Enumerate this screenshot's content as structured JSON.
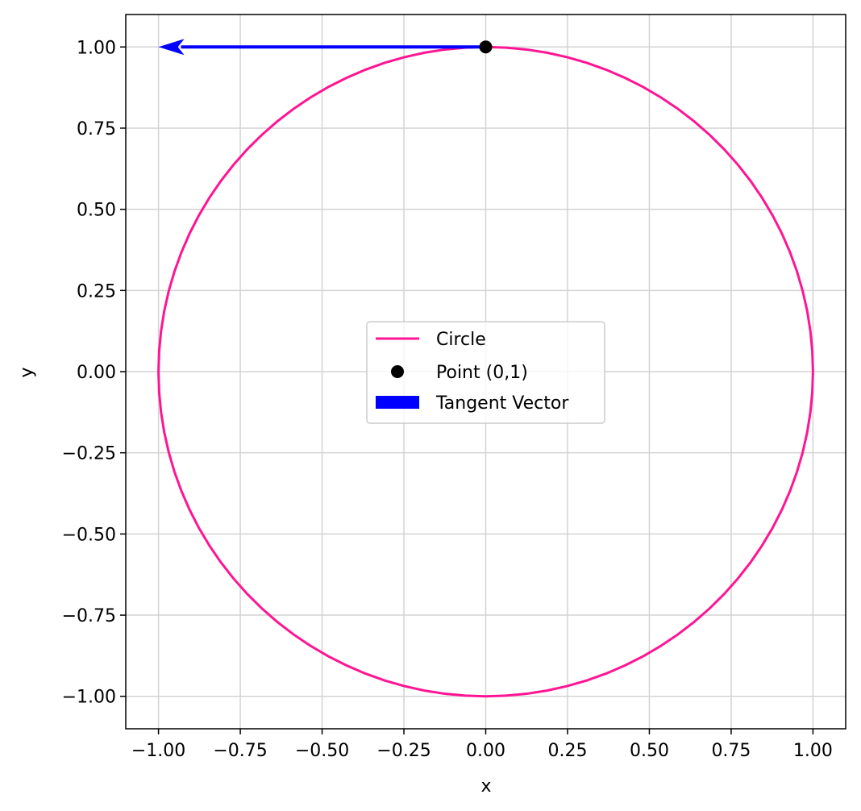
{
  "chart_data": {
    "type": "line",
    "title": "",
    "xlabel": "x",
    "ylabel": "y",
    "xlim": [
      -1.1,
      1.1
    ],
    "ylim": [
      -1.1,
      1.1
    ],
    "xticks": [
      -1.0,
      -0.75,
      -0.5,
      -0.25,
      0.0,
      0.25,
      0.5,
      0.75,
      1.0
    ],
    "yticks": [
      -1.0,
      -0.75,
      -0.5,
      -0.25,
      0.0,
      0.25,
      0.5,
      0.75,
      1.0
    ],
    "xtick_labels": [
      "−1.00",
      "−0.75",
      "−0.50",
      "−0.25",
      "0.00",
      "0.25",
      "0.50",
      "0.75",
      "1.00"
    ],
    "ytick_labels": [
      "−1.00",
      "−0.75",
      "−0.50",
      "−0.25",
      "0.00",
      "0.25",
      "0.50",
      "0.75",
      "1.00"
    ],
    "grid": true,
    "legend_position": "center",
    "series": [
      {
        "name": "Circle",
        "kind": "line",
        "shape": "unit circle",
        "center": [
          0,
          0
        ],
        "radius": 1,
        "color": "#ff1493"
      },
      {
        "name": "Point (0,1)",
        "kind": "scatter",
        "x": [
          0
        ],
        "y": [
          1
        ],
        "color": "#000000"
      },
      {
        "name": "Tangent Vector",
        "kind": "arrow",
        "start": [
          0,
          1
        ],
        "vector": [
          -1,
          0
        ],
        "color": "#0000ff"
      }
    ]
  }
}
